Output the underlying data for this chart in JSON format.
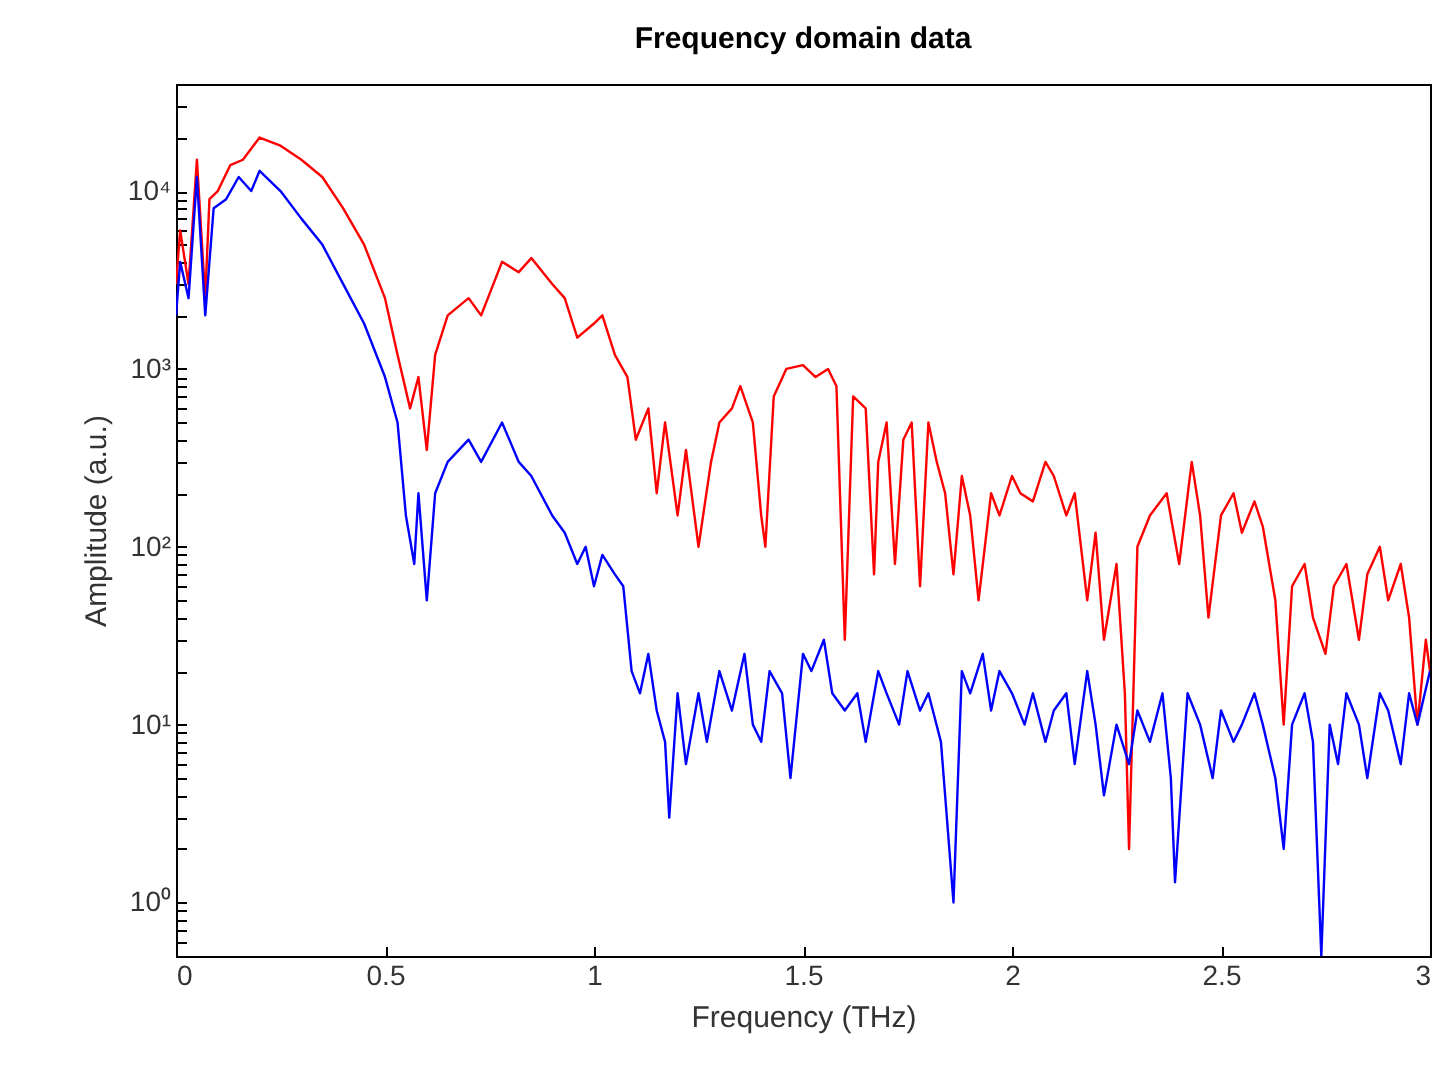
{
  "chart_data": {
    "type": "line",
    "title": "Frequency domain data",
    "xlabel": "Frequency (THz)",
    "ylabel": "Amplitude (a.u.)",
    "log": "y",
    "grid": false,
    "line_style": "solid",
    "xlim": [
      0,
      3
    ],
    "xticks": [
      0,
      0.5,
      1,
      1.5,
      2,
      2.5,
      3
    ],
    "ylim": [
      0.5,
      40000
    ],
    "yticks": [
      {
        "value": 0.5,
        "label": null
      },
      {
        "value": 0.6,
        "label": null
      },
      {
        "value": 0.7,
        "label": null
      },
      {
        "value": 0.8,
        "label": null
      },
      {
        "value": 0.9,
        "label": null
      },
      {
        "value": 1,
        "label": "10⁰"
      },
      {
        "value": 2,
        "label": null
      },
      {
        "value": 3,
        "label": null
      },
      {
        "value": 4,
        "label": null
      },
      {
        "value": 5,
        "label": null
      },
      {
        "value": 6,
        "label": null
      },
      {
        "value": 7,
        "label": null
      },
      {
        "value": 8,
        "label": null
      },
      {
        "value": 9,
        "label": null
      },
      {
        "value": 10,
        "label": "10¹"
      },
      {
        "value": 20,
        "label": null
      },
      {
        "value": 30,
        "label": null
      },
      {
        "value": 40,
        "label": null
      },
      {
        "value": 50,
        "label": null
      },
      {
        "value": 60,
        "label": null
      },
      {
        "value": 70,
        "label": null
      },
      {
        "value": 80,
        "label": null
      },
      {
        "value": 90,
        "label": null
      },
      {
        "value": 100,
        "label": "10²"
      },
      {
        "value": 200,
        "label": null
      },
      {
        "value": 300,
        "label": null
      },
      {
        "value": 400,
        "label": null
      },
      {
        "value": 500,
        "label": null
      },
      {
        "value": 600,
        "label": null
      },
      {
        "value": 700,
        "label": null
      },
      {
        "value": 800,
        "label": null
      },
      {
        "value": 900,
        "label": null
      },
      {
        "value": 1000,
        "label": "10³"
      },
      {
        "value": 2000,
        "label": null
      },
      {
        "value": 3000,
        "label": null
      },
      {
        "value": 4000,
        "label": null
      },
      {
        "value": 5000,
        "label": null
      },
      {
        "value": 6000,
        "label": null
      },
      {
        "value": 7000,
        "label": null
      },
      {
        "value": 8000,
        "label": null
      },
      {
        "value": 9000,
        "label": null
      },
      {
        "value": 10000,
        "label": "10⁴"
      },
      {
        "value": 20000,
        "label": null
      },
      {
        "value": 30000,
        "label": null
      },
      {
        "value": 40000,
        "label": null
      }
    ],
    "series": [
      {
        "color": "#ff0000",
        "x": [
          0,
          0.01,
          0.03,
          0.05,
          0.07,
          0.08,
          0.1,
          0.13,
          0.16,
          0.2,
          0.25,
          0.3,
          0.35,
          0.4,
          0.45,
          0.5,
          0.53,
          0.56,
          0.58,
          0.6,
          0.62,
          0.65,
          0.7,
          0.73,
          0.78,
          0.82,
          0.85,
          0.9,
          0.93,
          0.96,
          1.0,
          1.02,
          1.05,
          1.08,
          1.1,
          1.13,
          1.15,
          1.17,
          1.2,
          1.22,
          1.25,
          1.28,
          1.3,
          1.33,
          1.35,
          1.38,
          1.4,
          1.41,
          1.43,
          1.46,
          1.5,
          1.53,
          1.56,
          1.58,
          1.6,
          1.62,
          1.65,
          1.67,
          1.68,
          1.7,
          1.72,
          1.74,
          1.76,
          1.78,
          1.8,
          1.82,
          1.84,
          1.86,
          1.88,
          1.9,
          1.92,
          1.95,
          1.97,
          2.0,
          2.02,
          2.05,
          2.08,
          2.1,
          2.13,
          2.15,
          2.18,
          2.2,
          2.22,
          2.25,
          2.27,
          2.28,
          2.3,
          2.33,
          2.37,
          2.4,
          2.43,
          2.45,
          2.47,
          2.5,
          2.53,
          2.55,
          2.58,
          2.6,
          2.63,
          2.65,
          2.67,
          2.7,
          2.72,
          2.75,
          2.77,
          2.8,
          2.83,
          2.85,
          2.88,
          2.9,
          2.93,
          2.95,
          2.97,
          2.99,
          3.0
        ],
        "values": [
          3000,
          6000,
          3000,
          15000,
          2500,
          9000,
          10000,
          14000,
          15000,
          20000,
          18000,
          15000,
          12000,
          8000,
          5000,
          2500,
          1200,
          600,
          900,
          350,
          1200,
          2000,
          2500,
          2000,
          4000,
          3500,
          4200,
          3000,
          2500,
          1500,
          1800,
          2000,
          1200,
          900,
          400,
          600,
          200,
          500,
          150,
          350,
          100,
          300,
          500,
          600,
          800,
          500,
          150,
          100,
          700,
          1000,
          1050,
          900,
          1000,
          800,
          30,
          700,
          600,
          70,
          300,
          500,
          80,
          400,
          500,
          60,
          500,
          300,
          200,
          70,
          250,
          150,
          50,
          200,
          150,
          250,
          200,
          180,
          300,
          250,
          150,
          200,
          50,
          120,
          30,
          80,
          15,
          2,
          100,
          150,
          200,
          80,
          300,
          150,
          40,
          150,
          200,
          120,
          180,
          130,
          50,
          10,
          60,
          80,
          40,
          25,
          60,
          80,
          30,
          70,
          100,
          50,
          80,
          40,
          10,
          30,
          20
        ]
      },
      {
        "color": "#0000ff",
        "x": [
          0,
          0.01,
          0.03,
          0.05,
          0.07,
          0.09,
          0.12,
          0.15,
          0.18,
          0.2,
          0.25,
          0.3,
          0.35,
          0.4,
          0.45,
          0.5,
          0.53,
          0.55,
          0.57,
          0.58,
          0.6,
          0.62,
          0.65,
          0.7,
          0.73,
          0.78,
          0.82,
          0.85,
          0.9,
          0.93,
          0.96,
          0.98,
          1.0,
          1.02,
          1.05,
          1.07,
          1.09,
          1.11,
          1.13,
          1.15,
          1.17,
          1.18,
          1.2,
          1.22,
          1.25,
          1.27,
          1.3,
          1.33,
          1.36,
          1.38,
          1.4,
          1.42,
          1.45,
          1.47,
          1.5,
          1.52,
          1.55,
          1.57,
          1.6,
          1.63,
          1.65,
          1.68,
          1.7,
          1.73,
          1.75,
          1.78,
          1.8,
          1.83,
          1.86,
          1.88,
          1.9,
          1.93,
          1.95,
          1.97,
          2.0,
          2.03,
          2.05,
          2.08,
          2.1,
          2.13,
          2.15,
          2.18,
          2.2,
          2.22,
          2.25,
          2.28,
          2.3,
          2.33,
          2.36,
          2.38,
          2.39,
          2.42,
          2.45,
          2.48,
          2.5,
          2.53,
          2.55,
          2.58,
          2.6,
          2.63,
          2.65,
          2.67,
          2.7,
          2.72,
          2.74,
          2.76,
          2.78,
          2.8,
          2.83,
          2.85,
          2.88,
          2.9,
          2.93,
          2.95,
          2.97,
          3.0
        ],
        "values": [
          2000,
          4000,
          2500,
          12000,
          2000,
          8000,
          9000,
          12000,
          10000,
          13000,
          10000,
          7000,
          5000,
          3000,
          1800,
          900,
          500,
          150,
          80,
          200,
          50,
          200,
          300,
          400,
          300,
          500,
          300,
          250,
          150,
          120,
          80,
          100,
          60,
          90,
          70,
          60,
          20,
          15,
          25,
          12,
          8,
          3,
          15,
          6,
          15,
          8,
          20,
          12,
          25,
          10,
          8,
          20,
          15,
          5,
          25,
          20,
          30,
          15,
          12,
          15,
          8,
          20,
          15,
          10,
          20,
          12,
          15,
          8,
          1,
          20,
          15,
          25,
          12,
          20,
          15,
          10,
          15,
          8,
          12,
          15,
          6,
          20,
          10,
          4,
          10,
          6,
          12,
          8,
          15,
          5,
          1.3,
          15,
          10,
          5,
          12,
          8,
          10,
          15,
          10,
          5,
          2,
          10,
          15,
          8,
          0.5,
          10,
          6,
          15,
          10,
          5,
          15,
          12,
          6,
          15,
          10,
          20
        ]
      }
    ]
  }
}
